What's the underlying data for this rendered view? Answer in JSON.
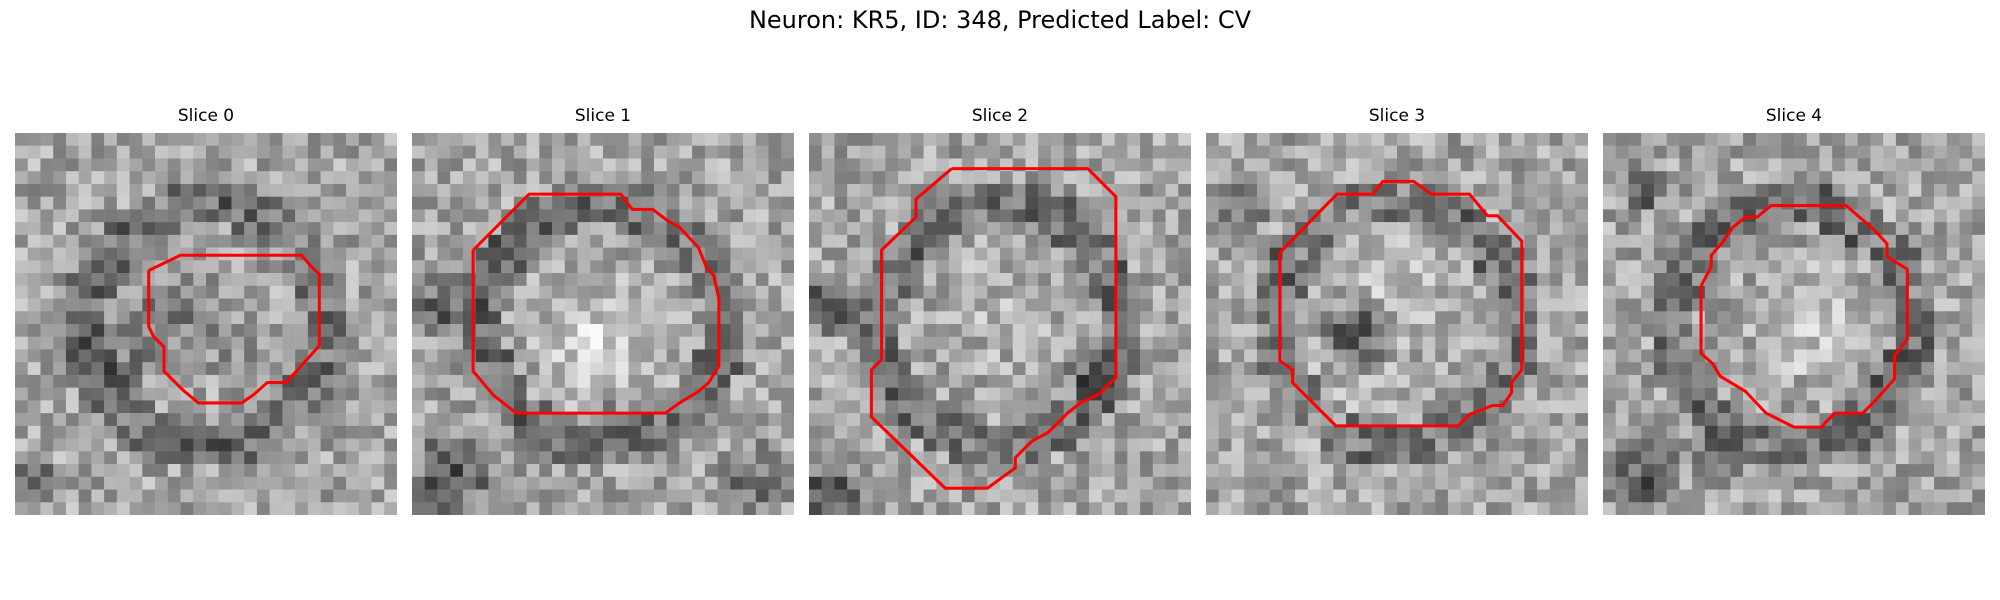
{
  "figure": {
    "title": "Neuron: KR5, ID: 348, Predicted Label: CV",
    "contour_color": "#ff0000",
    "panels": [
      {
        "title": "Slice 0",
        "seed": 11,
        "region_bias": "dark-inner",
        "blotches": [
          [
            0.25,
            0.55,
            0.18,
            -60
          ],
          [
            0.45,
            0.45,
            0.2,
            -40
          ],
          [
            0.05,
            0.92,
            0.08,
            -110
          ],
          [
            0.62,
            0.6,
            0.12,
            -30
          ]
        ]
      },
      {
        "title": "Slice 1",
        "seed": 23,
        "region_bias": "bright-inner",
        "blotches": [
          [
            0.1,
            0.45,
            0.12,
            -90
          ],
          [
            0.1,
            0.9,
            0.15,
            -100
          ],
          [
            0.9,
            0.9,
            0.12,
            -70
          ],
          [
            0.55,
            0.75,
            0.1,
            -60
          ],
          [
            0.5,
            0.55,
            0.25,
            50
          ]
        ]
      },
      {
        "title": "Slice 2",
        "seed": 37,
        "region_bias": "mid-inner",
        "blotches": [
          [
            0.05,
            0.45,
            0.1,
            -110
          ],
          [
            0.05,
            0.95,
            0.1,
            -110
          ],
          [
            0.75,
            0.65,
            0.1,
            -80
          ],
          [
            0.5,
            0.45,
            0.22,
            20
          ]
        ]
      },
      {
        "title": "Slice 3",
        "seed": 41,
        "region_bias": "dark-blob",
        "blotches": [
          [
            0.4,
            0.52,
            0.12,
            -120
          ],
          [
            0.1,
            0.2,
            0.08,
            -80
          ],
          [
            0.45,
            0.35,
            0.25,
            30
          ],
          [
            0.35,
            0.7,
            0.25,
            20
          ]
        ]
      },
      {
        "title": "Slice 4",
        "seed": 53,
        "region_bias": "ring",
        "blotches": [
          [
            0.1,
            0.15,
            0.08,
            -100
          ],
          [
            0.1,
            0.9,
            0.12,
            -110
          ],
          [
            0.3,
            0.85,
            0.1,
            -90
          ],
          [
            0.55,
            0.5,
            0.2,
            45
          ]
        ]
      }
    ]
  }
}
